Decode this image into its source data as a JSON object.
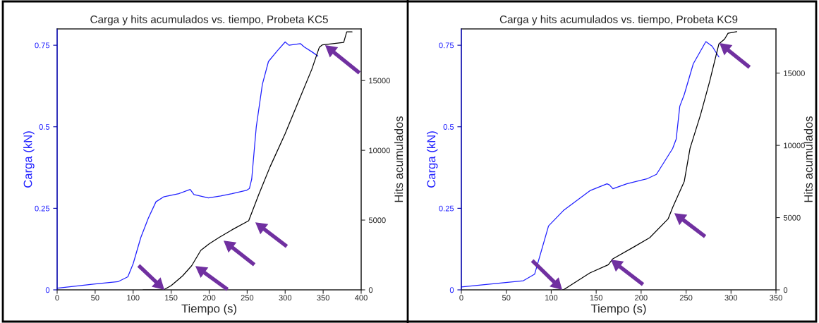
{
  "chart_data": [
    {
      "type": "line",
      "title": "Carga y hits acumulados vs. tiempo, Probeta KC5",
      "xlabel": "Tiempo (s)",
      "ylabel": "Carga (kN)",
      "y2label": "Hits acumulados",
      "xlim": [
        0,
        400
      ],
      "xticks": [
        0,
        50,
        100,
        150,
        200,
        250,
        300,
        350,
        400
      ],
      "ylim": [
        0,
        0.8
      ],
      "yticks": [
        0,
        0.25,
        0.5,
        0.75
      ],
      "y2lim": [
        0,
        18700
      ],
      "y2ticks": [
        0,
        5000,
        10000,
        15000
      ],
      "grid": false,
      "series": [
        {
          "color": "#1f1fff",
          "x": [
            0,
            50,
            80,
            93,
            100,
            110,
            120,
            130,
            140,
            160,
            175,
            180,
            199,
            215,
            230,
            249,
            253,
            256,
            262,
            270,
            278,
            289,
            300,
            305,
            320,
            325,
            335,
            343
          ],
          "values": [
            0.005,
            0.018,
            0.025,
            0.04,
            0.08,
            0.16,
            0.22,
            0.27,
            0.285,
            0.295,
            0.308,
            0.292,
            0.282,
            0.288,
            0.295,
            0.305,
            0.311,
            0.34,
            0.5,
            0.63,
            0.7,
            0.731,
            0.76,
            0.75,
            0.755,
            0.745,
            0.73,
            0.717
          ]
        },
        {
          "color": "#000000",
          "axis": "y2",
          "x": [
            113,
            140,
            150,
            165,
            177,
            189,
            200,
            213,
            230,
            252,
            265,
            280,
            300,
            319,
            335,
            345,
            349,
            377,
            381,
            388
          ],
          "values": [
            0,
            0,
            300,
            1000,
            1730,
            2830,
            3300,
            3750,
            4300,
            4950,
            6800,
            8800,
            11200,
            13700,
            15800,
            17390,
            17560,
            17730,
            18490,
            18490
          ]
        }
      ]
    },
    {
      "type": "line",
      "title": "Carga y hits acumulados vs. tiempo, Probeta KC9",
      "xlabel": "Tiempo (s)",
      "ylabel": "Carga (kN)",
      "y2label": "Hits acumulados",
      "xlim": [
        0,
        350
      ],
      "xticks": [
        0,
        50,
        100,
        150,
        200,
        250,
        300,
        350
      ],
      "ylim": [
        0,
        0.8
      ],
      "yticks": [
        0,
        0.25,
        0.5,
        0.75
      ],
      "y2lim": [
        0,
        18060
      ],
      "y2ticks": [
        0,
        5000,
        10000,
        15000
      ],
      "grid": false,
      "series": [
        {
          "color": "#1f1fff",
          "x": [
            0,
            69,
            81.5,
            97,
            113.5,
            143,
            162,
            164.7,
            168.6,
            184,
            207,
            217,
            235,
            239,
            243,
            248,
            258,
            272,
            279,
            286.5
          ],
          "values": [
            0.009,
            0.028,
            0.048,
            0.196,
            0.243,
            0.304,
            0.325,
            0.322,
            0.31,
            0.325,
            0.341,
            0.354,
            0.433,
            0.462,
            0.563,
            0.599,
            0.693,
            0.761,
            0.747,
            0.714
          ]
        },
        {
          "color": "#000000",
          "axis": "y2",
          "x": [
            102,
            113.5,
            143,
            163.5,
            168.6,
            191.6,
            209.6,
            230,
            235.2,
            248,
            254.4,
            266,
            276.2,
            286.5,
            292.8,
            296.7,
            306.4
          ],
          "values": [
            0,
            0,
            1170,
            1740,
            2150,
            2960,
            3610,
            4910,
            5720,
            7510,
            9790,
            12100,
            14420,
            17020,
            17350,
            17760,
            17870
          ]
        }
      ]
    }
  ]
}
